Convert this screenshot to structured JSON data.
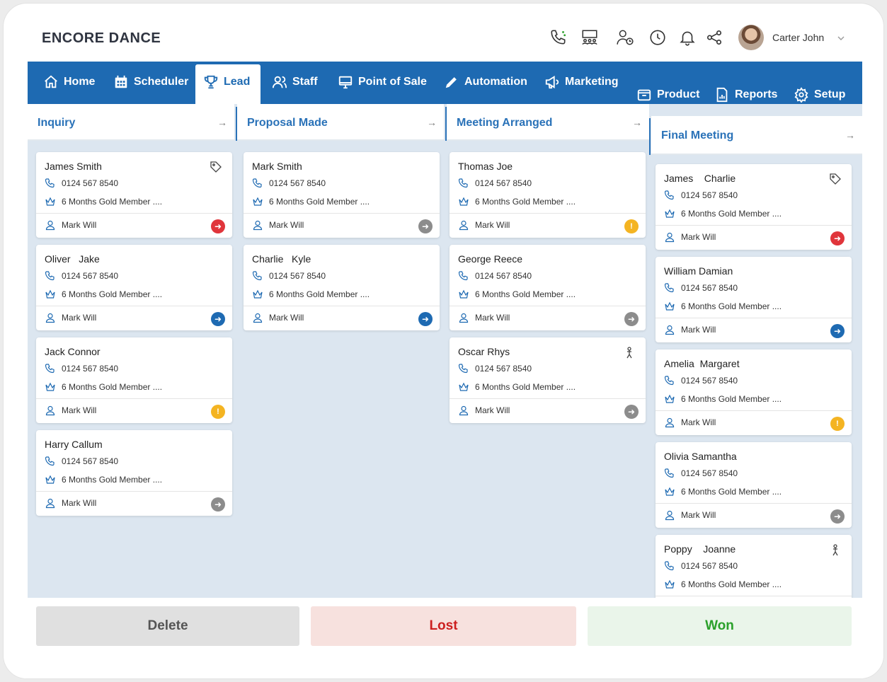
{
  "app": {
    "title": "ENCORE DANCE"
  },
  "user": {
    "name": "Carter John"
  },
  "nav": [
    {
      "label": "Home",
      "icon": "home-icon"
    },
    {
      "label": "Scheduler",
      "icon": "calendar-icon"
    },
    {
      "label": "Lead",
      "icon": "trophy-icon",
      "active": true
    },
    {
      "label": "Staff",
      "icon": "users-icon"
    },
    {
      "label": "Point of Sale",
      "icon": "monitor-icon"
    },
    {
      "label": "Automation",
      "icon": "pencil-icon"
    },
    {
      "label": "Marketing",
      "icon": "megaphone-icon"
    },
    {
      "label": "Product",
      "icon": "box-icon"
    },
    {
      "label": "Reports",
      "icon": "report-icon"
    },
    {
      "label": "Setup",
      "icon": "gear-icon"
    }
  ],
  "columns": [
    {
      "title": "Inquiry",
      "cards": [
        {
          "name": "James Smith",
          "phone": "0124 567 8540",
          "membership": "6 Months Gold Member ....",
          "assignee": "Mark Will",
          "status": "red",
          "badge": "tag"
        },
        {
          "name": "Oliver   Jake",
          "phone": "0124 567 8540",
          "membership": "6 Months Gold Member ....",
          "assignee": "Mark Will",
          "status": "blue"
        },
        {
          "name": "Jack Connor",
          "phone": "0124 567 8540",
          "membership": "6 Months Gold Member ....",
          "assignee": "Mark Will",
          "status": "yellow"
        },
        {
          "name": "Harry Callum",
          "phone": "0124 567 8540",
          "membership": "6 Months Gold Member ....",
          "assignee": "Mark Will",
          "status": "gray"
        }
      ]
    },
    {
      "title": "Proposal Made",
      "cards": [
        {
          "name": "Mark Smith",
          "phone": "0124 567 8540",
          "membership": "6 Months Gold Member ....",
          "assignee": "Mark Will",
          "status": "gray"
        },
        {
          "name": "Charlie   Kyle",
          "phone": "0124 567 8540",
          "membership": "6 Months Gold Member ....",
          "assignee": "Mark Will",
          "status": "blue"
        }
      ]
    },
    {
      "title": "Meeting Arranged",
      "cards": [
        {
          "name": "Thomas Joe",
          "phone": "0124 567 8540",
          "membership": "6 Months Gold Member ....",
          "assignee": "Mark Will",
          "status": "yellow"
        },
        {
          "name": "George Reece",
          "phone": "0124 567 8540",
          "membership": "6 Months Gold Member ....",
          "assignee": "Mark Will",
          "status": "gray"
        },
        {
          "name": "Oscar Rhys",
          "phone": "0124 567 8540",
          "membership": "6 Months Gold Member ....",
          "assignee": "Mark Will",
          "status": "gray",
          "badge": "person"
        }
      ]
    },
    {
      "title": "Final Meeting",
      "cards": [
        {
          "name": "James    Charlie",
          "phone": "0124 567 8540",
          "membership": "6 Months Gold Member ....",
          "assignee": "Mark Will",
          "status": "red",
          "badge": "tag"
        },
        {
          "name": "William Damian",
          "phone": "0124 567 8540",
          "membership": "6 Months Gold Member ....",
          "assignee": "Mark Will",
          "status": "blue"
        },
        {
          "name": "Amelia  Margaret",
          "phone": "0124 567 8540",
          "membership": "6 Months Gold Member ....",
          "assignee": "Mark Will",
          "status": "yellow"
        },
        {
          "name": "Olivia Samantha",
          "phone": "0124 567 8540",
          "membership": "6 Months Gold Member ....",
          "assignee": "Mark Will",
          "status": "gray"
        },
        {
          "name": "Poppy    Joanne",
          "phone": "0124 567 8540",
          "membership": "6 Months Gold Member ....",
          "assignee": "",
          "status": "",
          "badge": "person"
        }
      ]
    }
  ],
  "actions": {
    "delete": "Delete",
    "lost": "Lost",
    "won": "Won"
  },
  "colors": {
    "primary": "#1e6ab2",
    "red": "#e0353b",
    "yellow": "#f4b422",
    "gray": "#8c8c8c"
  }
}
